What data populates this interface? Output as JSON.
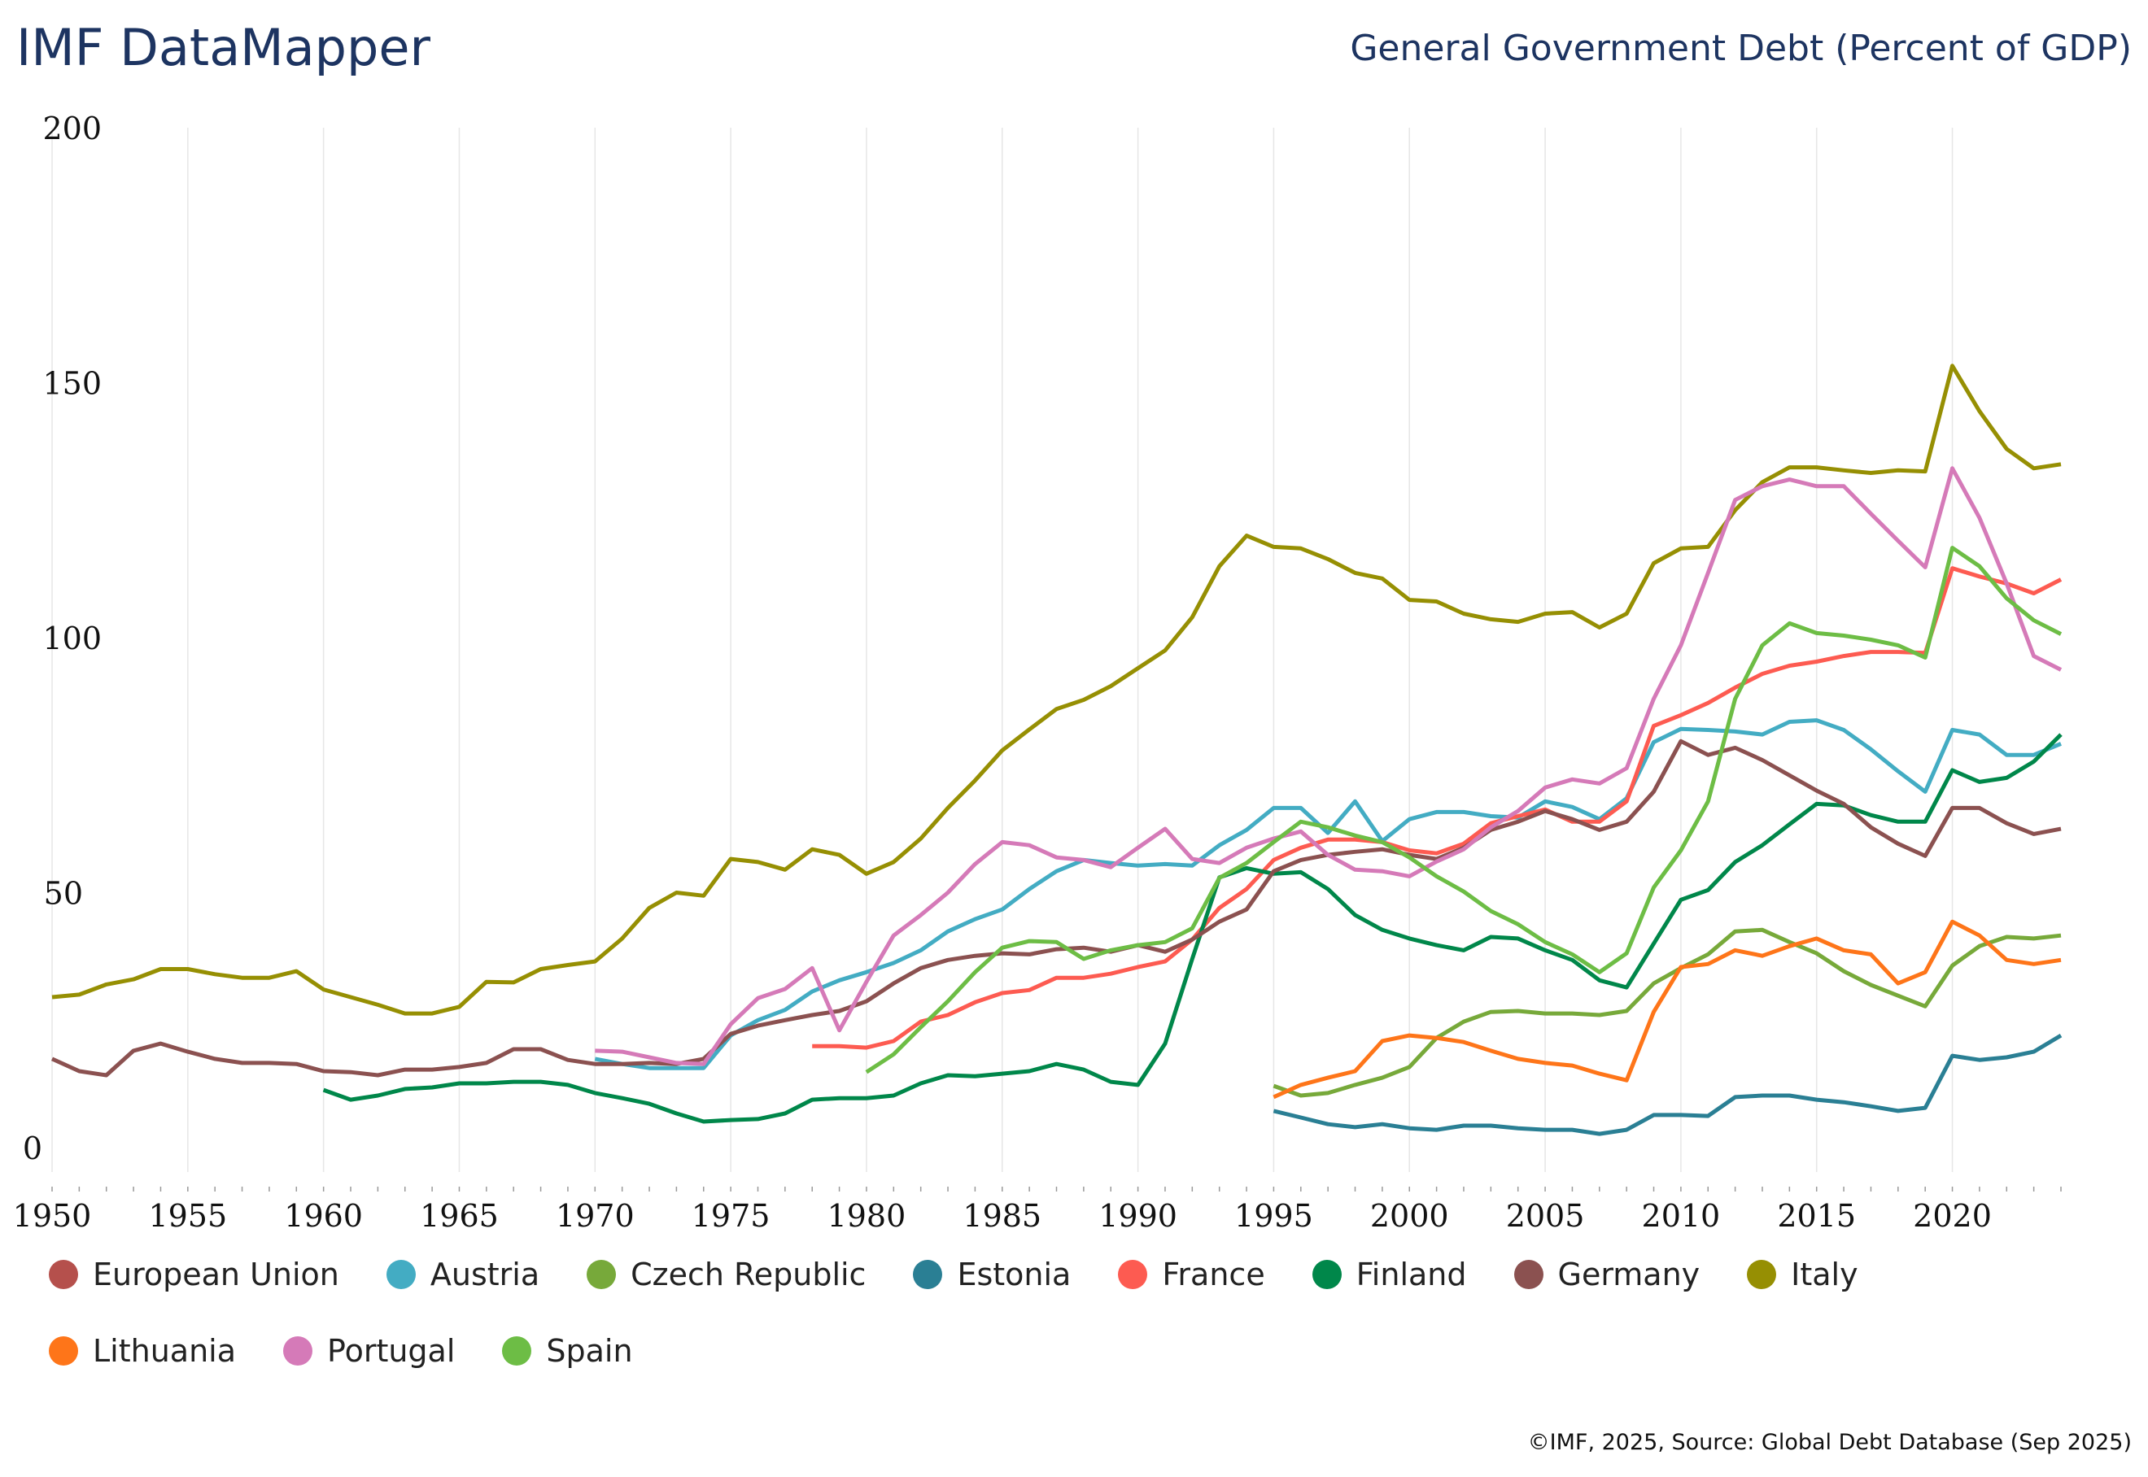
{
  "header": {
    "brand": "IMF DataMapper",
    "chart_title": "General Government Debt (Percent of GDP)"
  },
  "footer": {
    "source": "©IMF, 2025, Source: Global Debt Database (Sep 2025)"
  },
  "chart_data": {
    "type": "line",
    "title": "General Government Debt (Percent of GDP)",
    "xlabel": "",
    "ylabel": "",
    "xlim": [
      1950,
      2024
    ],
    "ylim": [
      0,
      200
    ],
    "yticks": [
      "0",
      "50",
      "100",
      "150",
      "200"
    ],
    "xticks": [
      "1950",
      "1955",
      "1960",
      "1965",
      "1970",
      "1975",
      "1980",
      "1985",
      "1990",
      "1995",
      "2000",
      "2005",
      "2010",
      "2015",
      "2020"
    ],
    "grid": "vertical",
    "legend_position": "bottom",
    "series": [
      {
        "name": "European Union",
        "color": "#b5504c",
        "start": 1950,
        "values": []
      },
      {
        "name": "Austria",
        "color": "#43acc3",
        "start": 1970,
        "values": [
          17.4,
          16.4,
          15.6,
          15.6,
          15.6,
          22,
          25,
          27,
          30.6,
          32.8,
          34.4,
          36.2,
          38.7,
          42.4,
          44.8,
          46.7,
          50.7,
          54.2,
          56.4,
          55.8,
          55.3,
          55.6,
          55.3,
          59.3,
          62.3,
          66.6,
          66.6,
          61.7,
          67.9,
          60.1,
          64.4,
          65.8,
          65.8,
          65,
          64.7,
          67.9,
          66.8,
          64.4,
          68.5,
          79.5,
          82.1,
          81.9,
          81.6,
          81,
          83.5,
          83.8,
          81.9,
          78.1,
          73.8,
          69.8,
          81.9,
          81,
          77,
          77,
          79.2
        ]
      },
      {
        "name": "Czech Republic",
        "color": "#77a93a",
        "start": 1995,
        "values": [
          12.1,
          10.2,
          10.7,
          12.3,
          13.7,
          15.8,
          21.5,
          24.7,
          26.6,
          26.8,
          26.3,
          26.3,
          26,
          26.8,
          32.2,
          35.2,
          37.9,
          42.4,
          42.7,
          40.3,
          38.1,
          34.6,
          31.9,
          29.8,
          27.7,
          35.7,
          39.5,
          41.3,
          41,
          41.6
        ]
      },
      {
        "name": "Estonia",
        "color": "#2a7f94",
        "start": 1995,
        "values": [
          7.2,
          5.9,
          4.6,
          4,
          4.6,
          3.8,
          3.5,
          4.3,
          4.3,
          3.8,
          3.5,
          3.5,
          2.7,
          3.5,
          6.4,
          6.4,
          6.2,
          9.9,
          10.2,
          10.2,
          9.4,
          8.9,
          8.1,
          7.2,
          7.8,
          18,
          17.2,
          17.7,
          18.8,
          22
        ]
      },
      {
        "name": "France",
        "color": "#fd5b51",
        "start": 1978,
        "values": [
          19.9,
          19.9,
          19.6,
          20.9,
          24.7,
          26,
          28.5,
          30.3,
          30.9,
          33.3,
          33.3,
          34.1,
          35.4,
          36.5,
          40.8,
          47,
          50.7,
          56.4,
          58.8,
          60.4,
          60.4,
          59.9,
          58.3,
          57.7,
          59.6,
          63.6,
          65,
          66.3,
          63.9,
          63.9,
          67.9,
          82.7,
          84.8,
          87.2,
          90.2,
          92.9,
          94.5,
          95.3,
          96.4,
          97.2,
          97.2,
          97,
          113.6,
          112,
          110.6,
          108.7,
          111.4
        ]
      },
      {
        "name": "Finland",
        "color": "#00874a",
        "start": 1960,
        "values": [
          11.3,
          9.4,
          10.2,
          11.5,
          11.8,
          12.6,
          12.6,
          12.9,
          12.9,
          12.3,
          10.7,
          9.7,
          8.6,
          6.7,
          5.1,
          5.4,
          5.6,
          6.7,
          9.4,
          9.7,
          9.7,
          10.2,
          12.6,
          14.2,
          14,
          14.5,
          15,
          16.4,
          15.3,
          12.9,
          12.3,
          20.4,
          37,
          53,
          54.8,
          53.7,
          54,
          50.7,
          45.6,
          42.7,
          41,
          39.7,
          38.7,
          41.3,
          41,
          38.7,
          36.8,
          32.8,
          31.4,
          40,
          48.6,
          50.5,
          56,
          59.3,
          63.4,
          67.4,
          67.1,
          65.2,
          63.9,
          63.9,
          74,
          71.7,
          72.5,
          75.7,
          81
        ]
      },
      {
        "name": "Germany",
        "color": "#8b5150",
        "start": 1950,
        "values": [
          17.4,
          15,
          14.2,
          19,
          20.4,
          18.8,
          17.4,
          16.6,
          16.6,
          16.4,
          15,
          14.8,
          14.2,
          15.3,
          15.3,
          15.8,
          16.6,
          19.3,
          19.3,
          17.2,
          16.4,
          16.4,
          16.6,
          16.4,
          17.4,
          22.3,
          23.9,
          25,
          26,
          26.8,
          28.7,
          32.2,
          35.2,
          36.8,
          37.6,
          38.1,
          37.9,
          38.9,
          39.2,
          38.4,
          39.7,
          38.4,
          40.8,
          44.3,
          46.7,
          54.2,
          56.4,
          57.4,
          58,
          58.5,
          57.4,
          56.6,
          58.8,
          62.3,
          63.9,
          66,
          64.4,
          62.3,
          63.9,
          69.8,
          79.7,
          77,
          78.4,
          76,
          73,
          70,
          67.4,
          62.8,
          59.6,
          57.2,
          66.6,
          66.6,
          63.6,
          61.5,
          62.5
        ]
      },
      {
        "name": "Italy",
        "color": "#968f03",
        "start": 1950,
        "values": [
          29.5,
          30,
          32,
          33,
          35,
          35,
          34,
          33.3,
          33.3,
          34.6,
          31,
          29.5,
          28,
          26.3,
          26.3,
          27.6,
          32.5,
          32.4,
          35,
          35.8,
          36.5,
          41,
          47,
          50,
          49.4,
          56.6,
          56,
          54.5,
          58.5,
          57.4,
          53.7,
          56,
          60.6,
          66.6,
          72,
          77.9,
          82,
          86,
          87.8,
          90.5,
          94,
          97.5,
          104,
          114,
          120,
          117.8,
          117.5,
          115.4,
          112.7,
          111.6,
          107.4,
          107.1,
          104.7,
          103.6,
          103.1,
          104.7,
          105,
          102,
          104.7,
          114.6,
          117.5,
          117.8,
          125,
          130.5,
          133.4,
          133.4,
          132.8,
          132.3,
          132.8,
          132.6,
          153.3,
          144.4,
          137,
          133.2,
          134
        ]
      },
      {
        "name": "Lithuania",
        "color": "#fe7519",
        "start": 1995,
        "values": [
          9.9,
          12.3,
          13.7,
          15,
          20.9,
          22,
          21.5,
          20.7,
          19,
          17.4,
          16.6,
          16.1,
          14.5,
          13.2,
          26.6,
          35.4,
          36,
          38.7,
          37.6,
          39.5,
          41,
          38.7,
          37.9,
          32.2,
          34.4,
          44.3,
          41.6,
          36.8,
          36,
          36.8
        ]
      },
      {
        "name": "Portugal",
        "color": "#d57ab8",
        "start": 1970,
        "values": [
          19,
          18.8,
          17.7,
          16.6,
          16.4,
          24.2,
          29.3,
          31.1,
          35.2,
          23,
          32.5,
          41.6,
          45.6,
          50,
          55.6,
          59.9,
          59.3,
          56.9,
          56.4,
          55,
          58.8,
          62.5,
          56.6,
          55.8,
          58.8,
          60.6,
          62,
          57.4,
          54.5,
          54.2,
          53.2,
          56.1,
          58.5,
          62.8,
          66,
          70.6,
          72.2,
          71.4,
          74.4,
          88,
          98.5,
          112.7,
          127,
          129.7,
          131,
          129.7,
          129.7,
          124.3,
          119,
          113.8,
          133.2,
          123.5,
          110.6,
          96.4,
          93.7
        ]
      },
      {
        "name": "Spain",
        "color": "#6dbd45",
        "start": 1980,
        "values": [
          14.8,
          18.3,
          23.6,
          28.7,
          34.4,
          39.2,
          40.5,
          40.3,
          37,
          38.7,
          39.7,
          40.3,
          43,
          52.9,
          55.8,
          59.9,
          63.9,
          62.8,
          61.2,
          59.9,
          56.9,
          53.2,
          50.2,
          46.4,
          43.8,
          40.3,
          37.9,
          34.4,
          38.1,
          51,
          58.3,
          67.9,
          88,
          98.5,
          102.8,
          100.9,
          100.4,
          99.6,
          98.5,
          96.1,
          117.6,
          114,
          107.7,
          103.4,
          100.7
        ]
      }
    ]
  }
}
